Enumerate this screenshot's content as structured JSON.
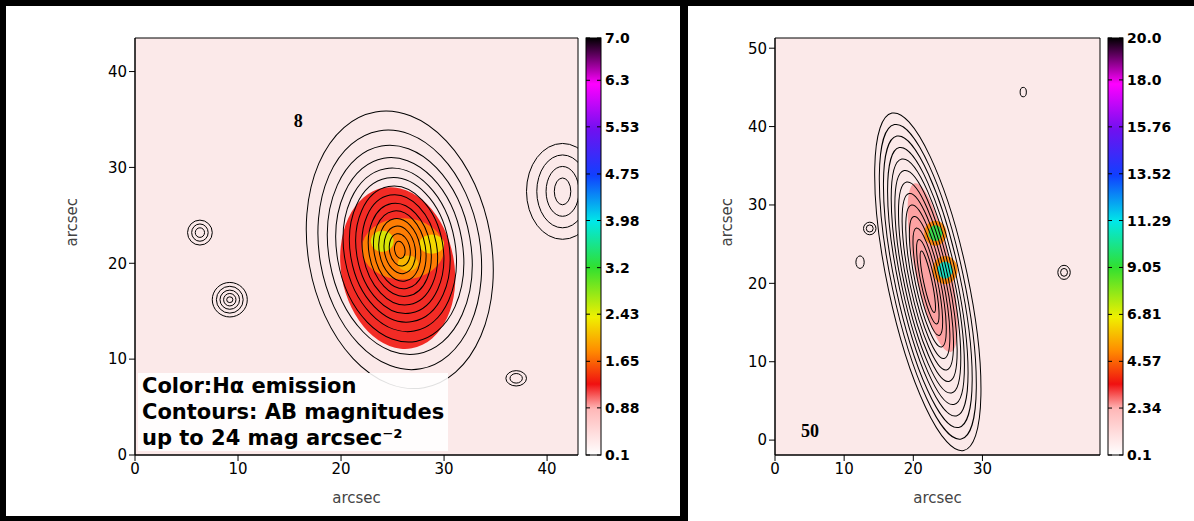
{
  "chart_data": [
    {
      "type": "image",
      "panel_label": "8",
      "x_label": "arcsec",
      "y_label": "arcsec",
      "annotations": [
        "Color:Hα emission",
        "Contours: AB magnitudes",
        "up to 24 mag arcsec⁻²"
      ],
      "xlim": [
        0,
        43
      ],
      "ylim": [
        0,
        43.5
      ],
      "xticks": [
        0,
        10,
        20,
        30,
        40
      ],
      "yticks": [
        0,
        10,
        20,
        30,
        40
      ],
      "colorbar": {
        "range": [
          0.1,
          7
        ],
        "ticks": [
          0.1,
          0.88,
          1.65,
          2.43,
          3.2,
          3.98,
          4.75,
          5.53,
          6.3,
          {
            "value": 7,
            "label": "7.0"
          }
        ]
      },
      "halpha": [
        {
          "x": 25.5,
          "y": 19.5,
          "a": 5.5,
          "b": 8.5,
          "position_angle": 10,
          "value": 1.3
        },
        {
          "x": 26,
          "y": 21.5,
          "a": 4,
          "b": 3.2,
          "position_angle": 0,
          "value": 1.8
        },
        {
          "x": 26.5,
          "y": 20,
          "a": 1,
          "b": 0.8,
          "position_angle": 0,
          "value": 2.1
        },
        {
          "x": 24,
          "y": 22.3,
          "a": 1.1,
          "b": 1.1,
          "position_angle": 0,
          "value": 2.5
        },
        {
          "x": 28.8,
          "y": 22,
          "a": 1.2,
          "b": 1,
          "position_angle": 0,
          "value": 2.3
        }
      ],
      "contours": [
        {
          "x": 25.7,
          "y": 21.4,
          "position_angle": 10,
          "semi_axes": [
            [
              8.9,
              14.6
            ],
            [
              7.8,
              12.6
            ],
            [
              6.9,
              11
            ],
            [
              6.1,
              9.7
            ],
            [
              5.4,
              8.6
            ],
            [
              4.8,
              7.6
            ],
            [
              4.2,
              6.7
            ],
            [
              3.6,
              5.8
            ],
            [
              3,
              4.9
            ],
            [
              2.5,
              4.1
            ],
            [
              2,
              3.3
            ],
            [
              1.5,
              2.5
            ],
            [
              1,
              1.7
            ],
            [
              0.5,
              0.9
            ]
          ]
        },
        {
          "x": 9.2,
          "y": 16.2,
          "position_angle": 0,
          "semi_axes": [
            [
              1.7,
              1.8
            ],
            [
              1.3,
              1.4
            ],
            [
              0.95,
              1
            ],
            [
              0.6,
              0.65
            ],
            [
              0.3,
              0.3
            ]
          ]
        },
        {
          "x": 6.3,
          "y": 23.2,
          "position_angle": 0,
          "semi_axes": [
            [
              1.2,
              1.3
            ],
            [
              0.8,
              0.9
            ],
            [
              0.45,
              0.5
            ]
          ]
        },
        {
          "x": 41.5,
          "y": 27.5,
          "position_angle": 0,
          "semi_axes": [
            [
              3.5,
              5
            ],
            [
              2.5,
              3.8
            ],
            [
              1.6,
              2.6
            ],
            [
              0.8,
              1.4
            ]
          ]
        },
        {
          "x": 37,
          "y": 8,
          "position_angle": 0,
          "semi_axes": [
            [
              1,
              0.8
            ],
            [
              0.6,
              0.5
            ]
          ]
        }
      ]
    },
    {
      "type": "image",
      "panel_label": "50",
      "x_label": "arcsec",
      "y_label": "arcsec",
      "xlim": [
        0,
        47
      ],
      "ylim": [
        -1.9,
        51.3
      ],
      "xticks": [
        0,
        10,
        20,
        30
      ],
      "yticks": [
        0,
        10,
        20,
        30,
        40,
        50
      ],
      "colorbar": {
        "range": [
          0.1,
          20
        ],
        "ticks": [
          0.1,
          2.34,
          4.57,
          6.81,
          9.05,
          11.29,
          13.52,
          15.76,
          {
            "value": 18,
            "label": "18.0"
          },
          {
            "value": 20,
            "label": "20.0"
          }
        ]
      },
      "halpha": [
        {
          "x": 22.8,
          "y": 22,
          "a": 2.6,
          "b": 11,
          "position_angle": 12,
          "value": 2.5
        },
        {
          "x": 23.2,
          "y": 26.4,
          "a": 1.6,
          "b": 1.6,
          "position_angle": 0,
          "value": 5
        },
        {
          "x": 24.6,
          "y": 21.7,
          "a": 1.8,
          "b": 1.8,
          "position_angle": 0,
          "value": 5
        },
        {
          "x": 23.2,
          "y": 26.4,
          "a": 1,
          "b": 1,
          "position_angle": 0,
          "value": 9.5
        },
        {
          "x": 24.6,
          "y": 21.7,
          "a": 1.1,
          "b": 1.1,
          "position_angle": 0,
          "value": 11
        }
      ],
      "contours": [
        {
          "x": 22.1,
          "y": 20.2,
          "position_angle": 12,
          "semi_axes": [
            [
              5.8,
              22
            ],
            [
              5.2,
              20.5
            ],
            [
              4.7,
              19
            ],
            [
              4.2,
              17.5
            ],
            [
              3.8,
              16
            ],
            [
              3.4,
              14.5
            ],
            [
              3,
              13
            ],
            [
              2.6,
              11.5
            ],
            [
              2.2,
              10
            ],
            [
              1.8,
              8.5
            ],
            [
              1.4,
              7
            ],
            [
              1,
              5.5
            ],
            [
              0.6,
              4
            ]
          ]
        },
        {
          "x": 13.7,
          "y": 27,
          "position_angle": 0,
          "semi_axes": [
            [
              0.9,
              0.8
            ],
            [
              0.5,
              0.45
            ]
          ]
        },
        {
          "x": 12.3,
          "y": 22.7,
          "position_angle": 0,
          "semi_axes": [
            [
              0.6,
              0.8
            ]
          ]
        },
        {
          "x": 41.8,
          "y": 21.4,
          "position_angle": 0,
          "semi_axes": [
            [
              0.9,
              0.9
            ],
            [
              0.5,
              0.5
            ]
          ]
        },
        {
          "x": 35.9,
          "y": 44.4,
          "position_angle": 0,
          "semi_axes": [
            [
              0.45,
              0.6
            ]
          ]
        }
      ]
    }
  ]
}
